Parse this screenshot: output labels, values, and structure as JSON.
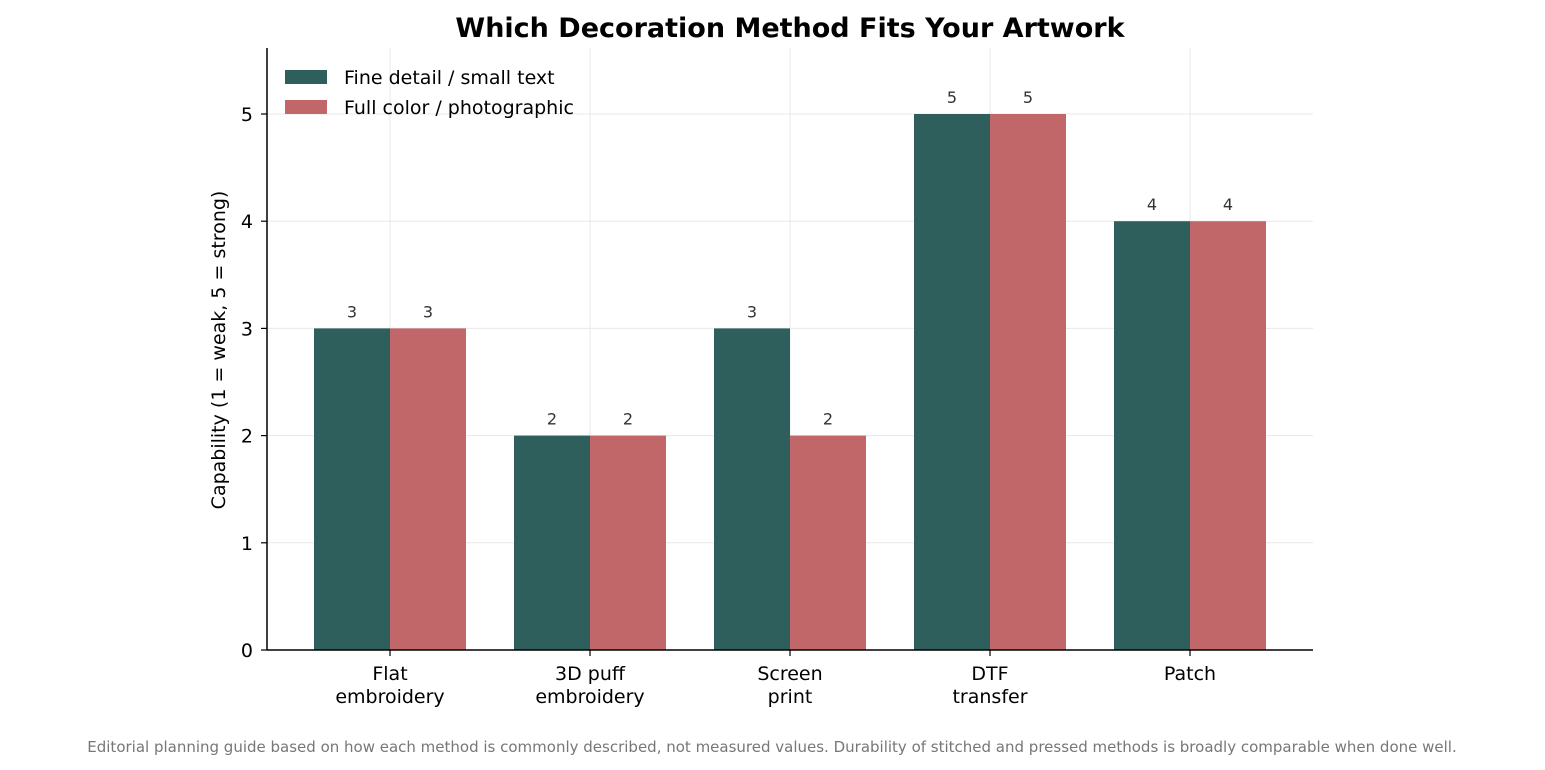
{
  "chart_data": {
    "type": "bar",
    "title": "Which Decoration Method Fits Your Artwork",
    "xlabel": "",
    "ylabel": "Capability (1 = weak, 5 = strong)",
    "categories": [
      [
        "Flat",
        "embroidery"
      ],
      [
        "3D puff",
        "embroidery"
      ],
      [
        "Screen",
        "print"
      ],
      [
        "DTF",
        "transfer"
      ],
      [
        "Patch"
      ]
    ],
    "series": [
      {
        "name": "Fine detail / small text",
        "values": [
          3,
          2,
          3,
          5,
          4
        ],
        "color": "#2e5f5c"
      },
      {
        "name": "Full color / photographic",
        "values": [
          3,
          2,
          2,
          5,
          4
        ],
        "color": "#c1676a"
      }
    ],
    "yticks": [
      0,
      1,
      2,
      3,
      4,
      5
    ],
    "ylim": [
      0,
      5.6
    ],
    "grid": true,
    "legend_position": "top-left",
    "data_labels": true
  },
  "footnote": "Editorial planning guide based on how each method is commonly described, not measured values. Durability of stitched and pressed methods is broadly comparable when done well."
}
